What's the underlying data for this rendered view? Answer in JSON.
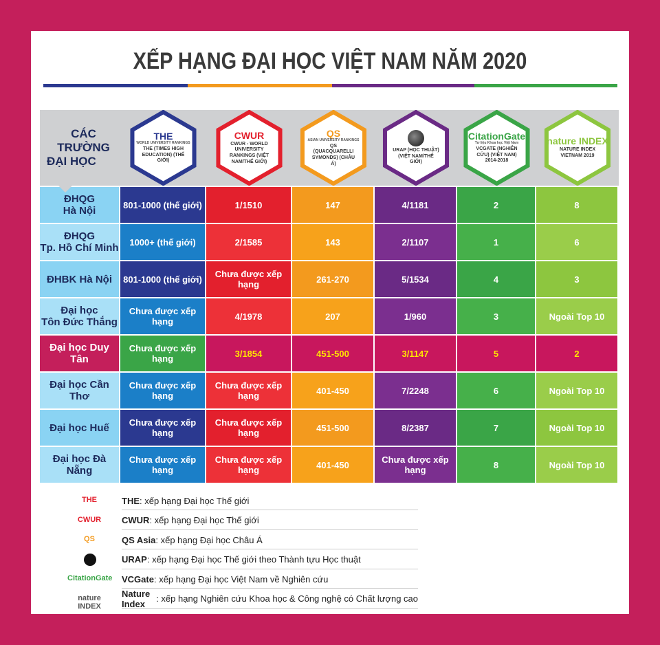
{
  "title": "XẾP HẠNG ĐẠI HỌC VIỆT NAM NĂM 2020",
  "table": {
    "corner": [
      "CÁC TRƯỜNG",
      "ĐẠI HỌC"
    ],
    "columns": [
      {
        "logo": "THE",
        "logo_sub": "WORLD UNIVERSITY RANKINGS",
        "caption": "THE (TIMES HIGH EDUCATION) (THẾ GIỚI)",
        "color": "#2b3990"
      },
      {
        "logo": "CWUR",
        "caption": "CWUR - WORLD UNIVERSITY RANKINGS (VIỆT NAM/THẾ GIỚI)",
        "color": "#e3202d"
      },
      {
        "logo": "QS",
        "logo_sub": "ASIAN UNIVERSITY RANKINGS",
        "caption": "QS (QUACQUARELLI SYMONDS) (CHÂU Á)",
        "color": "#f39a1e"
      },
      {
        "caption": "URAP (HỌC THUẬT) (VIỆT NAM/THẾ GIỚI)",
        "color": "#6a2a85"
      },
      {
        "logo": "CitationGate",
        "logo_sub": "Tư liệu Khoa học Việt Nam",
        "caption": "VCGATE (NGHIÊN CỨU) (VIỆT NAM) 2014-2018",
        "color": "#3aa547"
      },
      {
        "logo": "nature INDEX",
        "caption": "NATURE INDEX VIETNAM 2019",
        "color": "#8dc63f"
      }
    ],
    "rows": [
      {
        "name": [
          "ĐHQG",
          "Hà Nội"
        ],
        "cells": [
          "801-1000 (thế giới)",
          "1/1510",
          "147",
          "4/1181",
          "2",
          "8"
        ]
      },
      {
        "name": [
          "ĐHQG",
          "Tp. Hồ Chí Minh"
        ],
        "cells": [
          "1000+ (thế giới)",
          "2/1585",
          "143",
          "2/1107",
          "1",
          "6"
        ]
      },
      {
        "name": [
          "ĐHBK Hà Nội"
        ],
        "cells": [
          "801-1000 (thế giới)",
          "Chưa được xếp hạng",
          "261-270",
          "5/1534",
          "4",
          "3"
        ]
      },
      {
        "name": [
          "Đại học",
          "Tôn Đức Thắng"
        ],
        "cells": [
          "Chưa được xếp hạng",
          "4/1978",
          "207",
          "1/960",
          "3",
          "Ngoài Top 10"
        ]
      },
      {
        "name": [
          "Đại học Duy Tân"
        ],
        "cells": [
          "Chưa được xếp hạng",
          "3/1854",
          "451-500",
          "3/1147",
          "5",
          "2"
        ]
      },
      {
        "name": [
          "Đại học Cần Thơ"
        ],
        "cells": [
          "Chưa được xếp hạng",
          "Chưa được xếp hạng",
          "401-450",
          "7/2248",
          "6",
          "Ngoài Top 10"
        ]
      },
      {
        "name": [
          "Đại học Huế"
        ],
        "cells": [
          "Chưa được xếp hạng",
          "Chưa được xếp hạng",
          "451-500",
          "8/2387",
          "7",
          "Ngoài Top 10"
        ]
      },
      {
        "name": [
          "Đại học Đà Nẵng"
        ],
        "cells": [
          "Chưa được xếp hạng",
          "Chưa được xếp hạng",
          "401-450",
          "Chưa được xếp hạng",
          "8",
          "Ngoài Top 10"
        ]
      }
    ]
  },
  "legend": [
    {
      "name": "THE",
      "text": ": xếp hạng Đại học Thế giới"
    },
    {
      "name": "CWUR",
      "text": ": xếp hạng Đại học Thế giới"
    },
    {
      "name": "QS Asia",
      "text": ": xếp hạng Đại học Châu Á"
    },
    {
      "name": "URAP",
      "text": ": xếp hạng Đại học Thế giới theo Thành tựu Học thuật"
    },
    {
      "name": "VCGate",
      "text": ": xếp hạng Đại học Việt Nam về Nghiên cứu"
    },
    {
      "name": "Nature Index",
      "text": ": xếp hạng Nghiên cứu Khoa học & Công nghệ có Chất lượng cao"
    }
  ]
}
